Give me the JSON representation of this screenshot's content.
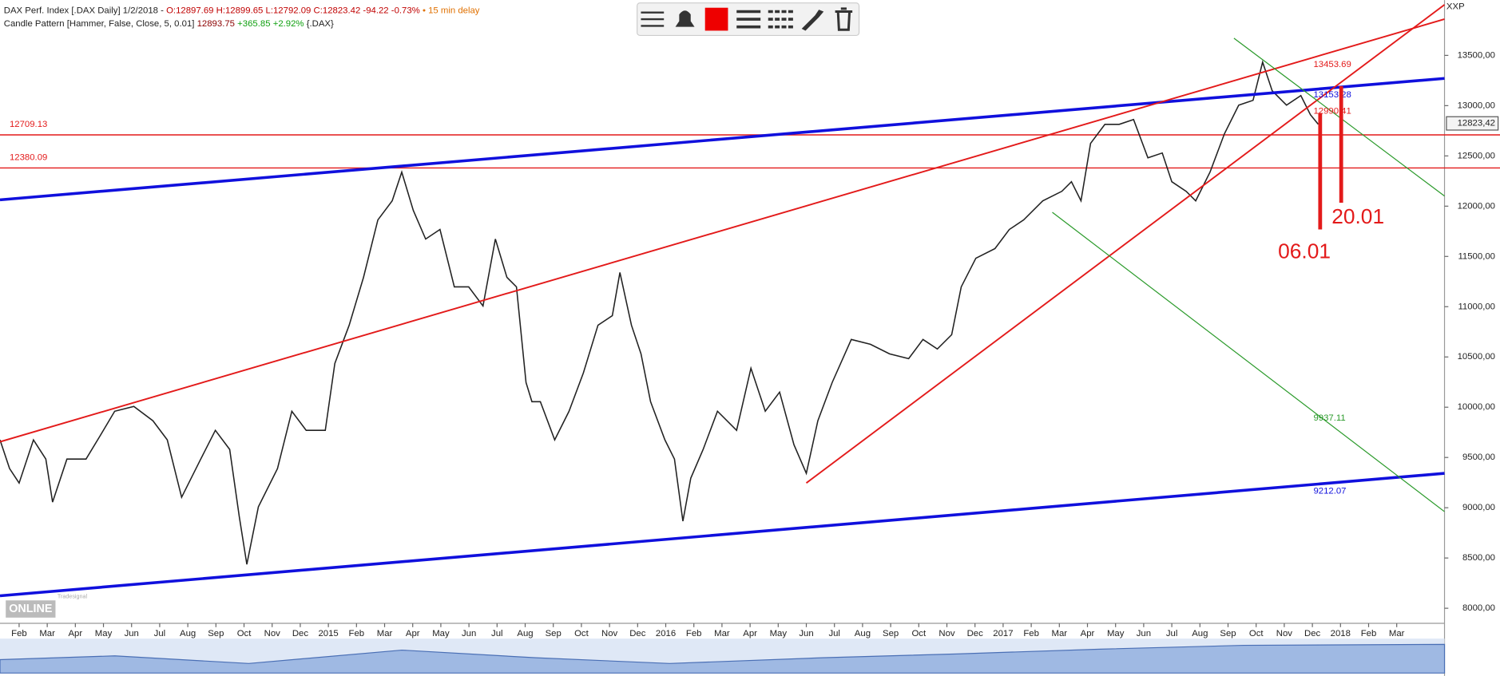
{
  "header": {
    "instrument": "DAX Perf. Index [.DAX Daily] 1/2/2018 -",
    "ohlc": "O:12897.69 H:12899.65 L:12792.09 C:12823.42 -94.22 -0.73%",
    "delay": "• 15 min delay",
    "indicator": "Candle Pattern [Hammer, False, Close, 5, 0.01]",
    "indicator_value": "12893.75",
    "indicator_change": "+365.85 +2.92%",
    "symbol": "{.DAX}",
    "corner": "XXP",
    "logo_top": "Tradesignal",
    "logo": "ONLINE"
  },
  "chart_data": {
    "type": "line",
    "color": "#222222",
    "x": [
      -0.68,
      -0.34,
      0,
      0.51,
      0.95,
      1.19,
      1.7,
      2.38,
      2.89,
      3.4,
      4.08,
      4.76,
      5.27,
      5.78,
      6.46,
      6.98,
      7.49,
      7.83,
      8.1,
      8.51,
      9.19,
      9.7,
      10.21,
      10.89,
      11.23,
      11.74,
      12.25,
      12.76,
      13.27,
      13.61,
      14.02,
      14.46,
      14.97,
      15.48,
      15.99,
      16.5,
      16.94,
      17.35,
      17.69,
      18.03,
      18.24,
      18.54,
      19.05,
      19.56,
      20.07,
      20.59,
      21.1,
      21.37,
      21.78,
      22.12,
      22.46,
      22.97,
      23.31,
      23.61,
      23.89,
      24.33,
      24.84,
      25.52,
      26.03,
      26.54,
      27.05,
      27.56,
      28.0,
      28.41,
      28.92,
      29.6,
      30.28,
      30.96,
      31.64,
      32.15,
      32.66,
      33.17,
      33.51,
      34.03,
      34.71,
      35.22,
      35.73,
      36.41,
      37.09,
      37.43,
      37.77,
      38.11,
      38.62,
      39.13,
      39.64,
      40.15,
      40.66,
      41.0,
      41.51,
      41.85,
      42.36,
      42.87,
      43.38,
      43.89,
      44.23,
      44.57,
      45.08,
      45.59,
      45.93,
      46.21
    ],
    "values": [
      9675,
      9390,
      9246,
      9675,
      9484,
      9056,
      9484,
      9484,
      9720,
      9960,
      10008,
      9865,
      9675,
      9104,
      9484,
      9770,
      9580,
      8913,
      8437,
      9009,
      9390,
      9960,
      9770,
      9770,
      10436,
      10816,
      11292,
      11863,
      12053,
      12339,
      11958,
      11673,
      11768,
      11197,
      11197,
      11007,
      11673,
      11292,
      11197,
      10246,
      10055,
      10055,
      9675,
      9960,
      10341,
      10816,
      10911,
      11340,
      10816,
      10531,
      10055,
      9675,
      9484,
      8866,
      9294,
      9580,
      9960,
      9770,
      10388,
      9960,
      10150,
      9627,
      9342,
      9865,
      10246,
      10674,
      10626,
      10531,
      10483,
      10674,
      10579,
      10721,
      11197,
      11482,
      11578,
      11768,
      11863,
      12053,
      12148,
      12243,
      12053,
      12624,
      12814,
      12814,
      12862,
      12481,
      12529,
      12243,
      12148,
      12053,
      12339,
      12719,
      13005,
      13053,
      13433,
      13148,
      13005,
      13100,
      12910,
      12814
    ],
    "xlim": [
      -0.68,
      50.7
    ],
    "ylim": [
      7850,
      14050
    ],
    "xticks": [
      {
        "value": 0,
        "label": "Feb"
      },
      {
        "value": 1,
        "label": "Mar"
      },
      {
        "value": 2,
        "label": "Apr"
      },
      {
        "value": 3,
        "label": "May"
      },
      {
        "value": 4,
        "label": "Jun"
      },
      {
        "value": 5,
        "label": "Jul"
      },
      {
        "value": 6,
        "label": "Aug"
      },
      {
        "value": 7,
        "label": "Sep"
      },
      {
        "value": 8,
        "label": "Oct"
      },
      {
        "value": 9,
        "label": "Nov"
      },
      {
        "value": 10,
        "label": "Dec"
      },
      {
        "value": 11,
        "label": "2015"
      },
      {
        "value": 12,
        "label": "Feb"
      },
      {
        "value": 13,
        "label": "Mar"
      },
      {
        "value": 14,
        "label": "Apr"
      },
      {
        "value": 15,
        "label": "May"
      },
      {
        "value": 16,
        "label": "Jun"
      },
      {
        "value": 17,
        "label": "Jul"
      },
      {
        "value": 18,
        "label": "Aug"
      },
      {
        "value": 19,
        "label": "Sep"
      },
      {
        "value": 20,
        "label": "Oct"
      },
      {
        "value": 21,
        "label": "Nov"
      },
      {
        "value": 22,
        "label": "Dec"
      },
      {
        "value": 23,
        "label": "2016"
      },
      {
        "value": 24,
        "label": "Feb"
      },
      {
        "value": 25,
        "label": "Mar"
      },
      {
        "value": 26,
        "label": "Apr"
      },
      {
        "value": 27,
        "label": "May"
      },
      {
        "value": 28,
        "label": "Jun"
      },
      {
        "value": 29,
        "label": "Jul"
      },
      {
        "value": 30,
        "label": "Aug"
      },
      {
        "value": 31,
        "label": "Sep"
      },
      {
        "value": 32,
        "label": "Oct"
      },
      {
        "value": 33,
        "label": "Nov"
      },
      {
        "value": 34,
        "label": "Dec"
      },
      {
        "value": 35,
        "label": "2017"
      },
      {
        "value": 36,
        "label": "Feb"
      },
      {
        "value": 37,
        "label": "Mar"
      },
      {
        "value": 38,
        "label": "Apr"
      },
      {
        "value": 39,
        "label": "May"
      },
      {
        "value": 40,
        "label": "Jun"
      },
      {
        "value": 41,
        "label": "Jul"
      },
      {
        "value": 42,
        "label": "Aug"
      },
      {
        "value": 43,
        "label": "Sep"
      },
      {
        "value": 44,
        "label": "Oct"
      },
      {
        "value": 45,
        "label": "Nov"
      },
      {
        "value": 46,
        "label": "Dec"
      },
      {
        "value": 47,
        "label": "2018"
      },
      {
        "value": 48,
        "label": "Feb"
      },
      {
        "value": 49,
        "label": "Mar"
      }
    ],
    "yticks": [
      {
        "value": 8000,
        "label": "8000,00"
      },
      {
        "value": 8500,
        "label": "8500,00"
      },
      {
        "value": 9000,
        "label": "9000,00"
      },
      {
        "value": 9500,
        "label": "9500,00"
      },
      {
        "value": 10000,
        "label": "10000,00"
      },
      {
        "value": 10500,
        "label": "10500,00"
      },
      {
        "value": 11000,
        "label": "11000,00"
      },
      {
        "value": 11500,
        "label": "11500,00"
      },
      {
        "value": 12000,
        "label": "12000,00"
      },
      {
        "value": 12500,
        "label": "12500,00"
      },
      {
        "value": 13000,
        "label": "13000,00"
      },
      {
        "value": 13500,
        "label": "13500,00"
      }
    ],
    "last_price": {
      "value": 12823.42,
      "label": "12823,42"
    },
    "hlines": [
      12709.13,
      12380.09
    ],
    "hline_color": "#e31a1a",
    "trendlines": [
      {
        "color": "#1010dd",
        "width": 3,
        "x": [
          -0.68,
          50.7
        ],
        "values": [
          12063,
          13271
        ]
      },
      {
        "color": "#1010dd",
        "width": 3,
        "x": [
          -0.68,
          50.7
        ],
        "values": [
          8124,
          9342
        ]
      },
      {
        "color": "#e31a1a",
        "width": 1.6,
        "x": [
          -0.68,
          50.7
        ],
        "values": [
          9656,
          13861
        ]
      },
      {
        "color": "#e31a1a",
        "width": 1.6,
        "x": [
          28.0,
          50.7
        ],
        "values": [
          9246,
          14004
        ]
      },
      {
        "color": "#2a9a2a",
        "width": 1,
        "x": [
          43.21,
          50.7
        ],
        "values": [
          13671,
          12101
        ]
      },
      {
        "color": "#2a9a2a",
        "width": 1,
        "x": [
          36.75,
          50.7
        ],
        "values": [
          11939,
          8961
        ]
      }
    ],
    "level_labels": [
      {
        "value": 13453.69,
        "color": "#e31a1a"
      },
      {
        "value": 13153.28,
        "color": "#1010dd"
      },
      {
        "value": 12990.41,
        "color": "#e31a1a"
      },
      {
        "value": 9937.11,
        "color": "#2a9a2a"
      },
      {
        "value": 9212.07,
        "color": "#1010dd"
      }
    ],
    "annotations": [
      "06.01",
      "20.01"
    ]
  }
}
